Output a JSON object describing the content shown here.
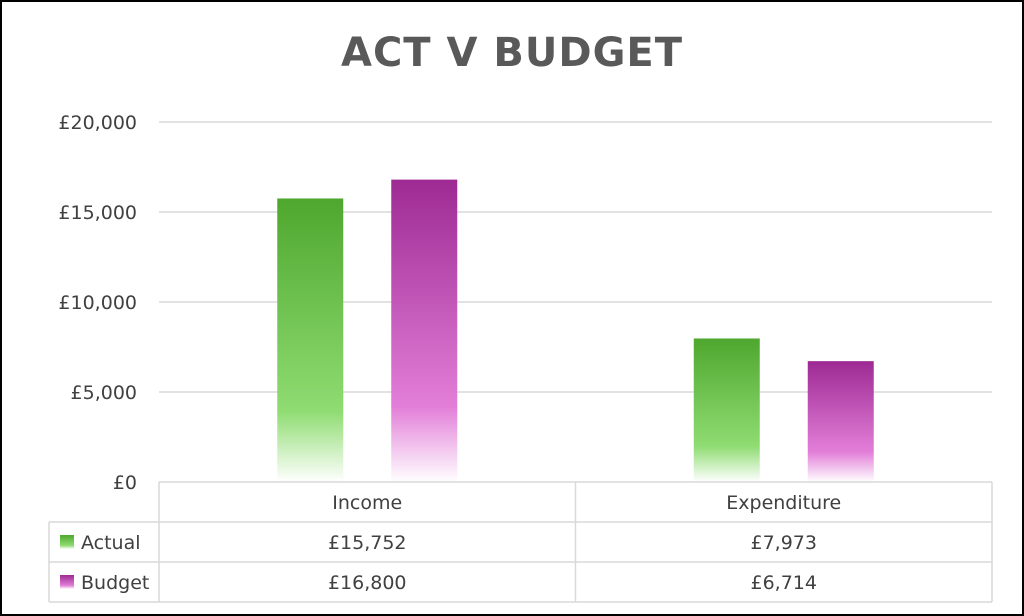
{
  "chart_data": {
    "type": "bar",
    "title": "ACT V BUDGET",
    "categories": [
      "Income",
      "Expenditure"
    ],
    "series": [
      {
        "name": "Actual",
        "values": [
          15752,
          7973
        ],
        "labels": [
          "£15,752",
          "£7,973"
        ],
        "color_top": "#4ea72e",
        "color_bottom": "#8fdc72"
      },
      {
        "name": "Budget",
        "values": [
          16800,
          6714
        ],
        "labels": [
          "£16,800",
          "£6,714"
        ],
        "color_top": "#9d2a93",
        "color_bottom": "#e27ed8"
      }
    ],
    "ylim": [
      0,
      20000
    ],
    "yticks": [
      0,
      5000,
      10000,
      15000,
      20000
    ],
    "ytick_labels": [
      "£0",
      "£5,000",
      "£10,000",
      "£15,000",
      "£20,000"
    ],
    "grid": true,
    "legend": "data-table",
    "gridline_color": "#d9d9d9",
    "table_border_color": "#d9d9d9"
  }
}
